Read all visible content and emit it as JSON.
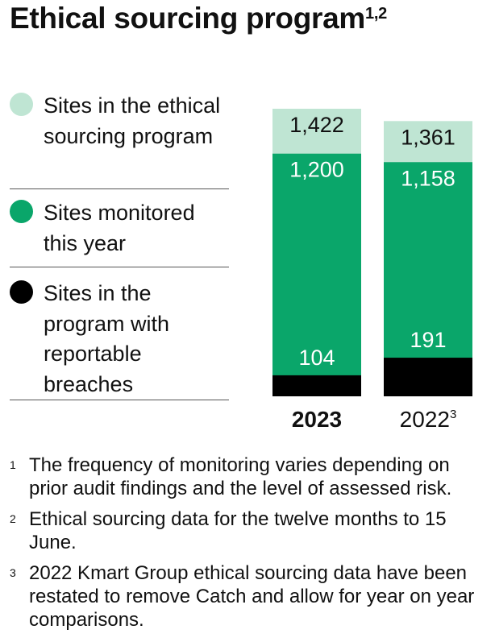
{
  "title": "Ethical sourcing program",
  "title_notes": "1,2",
  "legend": [
    {
      "label": "Sites in the ethical sourcing program",
      "color": "#bfe5d3"
    },
    {
      "label": "Sites monitored this year",
      "color": "#0aa66a"
    },
    {
      "label": "Sites in the program with reportable breaches",
      "color": "#000000"
    }
  ],
  "chart_data": {
    "type": "bar",
    "categories": [
      "2023",
      "2022"
    ],
    "category_notes": [
      "",
      "3"
    ],
    "series": [
      {
        "name": "Sites in the ethical sourcing program",
        "values": [
          1422,
          1361
        ],
        "color": "#bfe5d3"
      },
      {
        "name": "Sites monitored this year",
        "values": [
          1200,
          1158
        ],
        "color": "#0aa66a"
      },
      {
        "name": "Sites in the program with reportable breaches",
        "values": [
          104,
          191
        ],
        "color": "#000000"
      }
    ],
    "data_labels": [
      [
        "1,422",
        "1,200",
        "104"
      ],
      [
        "1,361",
        "1,158",
        "191"
      ]
    ],
    "ylim": [
      0,
      1422
    ]
  },
  "footnotes": [
    {
      "num": "1",
      "text": "The frequency of monitoring varies depending on prior audit findings and the level of assessed risk."
    },
    {
      "num": "2",
      "text": "Ethical sourcing data for the twelve months to 15 June."
    },
    {
      "num": "3",
      "text": "2022 Kmart Group ethical sourcing data have been restated to remove Catch and allow for year on year comparisons."
    }
  ]
}
